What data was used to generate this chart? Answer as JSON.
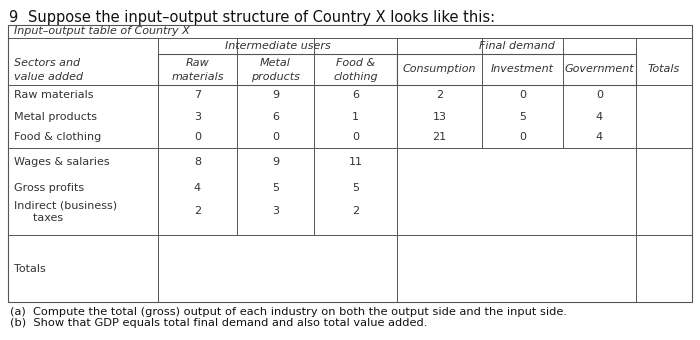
{
  "title_prefix": "9",
  "title_text": "Suppose the input–output structure of Country X looks like this:",
  "table_title": "Input–output table of Country X",
  "intermediate_users_label": "Intermediate users",
  "final_demand_label": "Final demand",
  "row_label_header1": "Sectors and",
  "row_label_header2": "value added",
  "col_h1": [
    "Raw",
    "Metal",
    "Food &",
    "",
    "",
    "",
    ""
  ],
  "col_h2": [
    "materials",
    "products",
    "clothing",
    "Consumption",
    "Investment",
    "Government",
    "Totals"
  ],
  "sectors": [
    {
      "label": "Raw materials",
      "inter": [
        7,
        9,
        6
      ],
      "final": [
        2,
        0,
        0
      ]
    },
    {
      "label": "Metal products",
      "inter": [
        3,
        6,
        1
      ],
      "final": [
        13,
        5,
        4
      ]
    },
    {
      "label": "Food & clothing",
      "inter": [
        0,
        0,
        0
      ],
      "final": [
        21,
        0,
        4
      ]
    }
  ],
  "va_labels": [
    "Wages & salaries",
    "Gross profits",
    "Indirect (business)",
    "  taxes"
  ],
  "va_values": [
    [
      8,
      9,
      11
    ],
    [
      4,
      5,
      5
    ],
    [
      2,
      3,
      2
    ]
  ],
  "totals_label": "Totals",
  "footnote_a": "(a)  Compute the total (gross) output of each industry on both the output side and the input side.",
  "footnote_b": "(b)  Show that GDP equals total final demand and also total value added.",
  "bg_color": "#ffffff",
  "line_color": "#555555",
  "text_color": "#333333",
  "fs_title": 10.5,
  "fs_table": 8.0,
  "fs_fn": 8.2
}
